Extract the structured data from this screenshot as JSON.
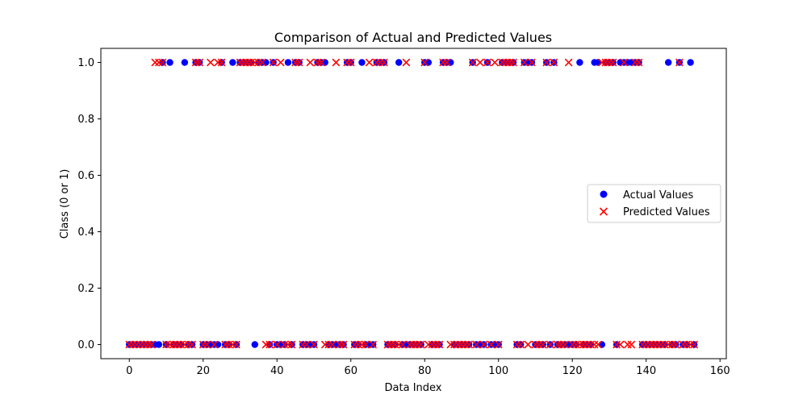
{
  "chart_data": {
    "type": "scatter",
    "title": "Comparison of Actual and Predicted Values",
    "xlabel": "Data Index",
    "ylabel": "Class (0 or 1)",
    "xlim": [
      -7.7,
      161.7
    ],
    "ylim": [
      -0.05,
      1.05
    ],
    "xticks": [
      0,
      20,
      40,
      60,
      80,
      100,
      120,
      140,
      160
    ],
    "yticks": [
      0.0,
      0.2,
      0.4,
      0.6,
      0.8,
      1.0
    ],
    "xtick_labels": [
      "0",
      "20",
      "40",
      "60",
      "80",
      "100",
      "120",
      "140",
      "160"
    ],
    "ytick_labels": [
      "0.0",
      "0.2",
      "0.4",
      "0.6",
      "0.8",
      "1.0"
    ],
    "grid": false,
    "legend_position": "center-right",
    "x": [
      0,
      1,
      2,
      3,
      4,
      5,
      6,
      7,
      8,
      9,
      10,
      11,
      12,
      13,
      14,
      15,
      16,
      17,
      18,
      19,
      20,
      21,
      22,
      23,
      24,
      25,
      26,
      27,
      28,
      29,
      30,
      31,
      32,
      33,
      34,
      35,
      36,
      37,
      38,
      39,
      40,
      41,
      42,
      43,
      44,
      45,
      46,
      47,
      48,
      49,
      50,
      51,
      52,
      53,
      54,
      55,
      56,
      57,
      58,
      59,
      60,
      61,
      62,
      63,
      64,
      65,
      66,
      67,
      68,
      69,
      70,
      71,
      72,
      73,
      74,
      75,
      76,
      77,
      78,
      79,
      80,
      81,
      82,
      83,
      84,
      85,
      86,
      87,
      88,
      89,
      90,
      91,
      92,
      93,
      94,
      95,
      96,
      97,
      98,
      99,
      100,
      101,
      102,
      103,
      104,
      105,
      106,
      107,
      108,
      109,
      110,
      111,
      112,
      113,
      114,
      115,
      116,
      117,
      118,
      119,
      120,
      121,
      122,
      123,
      124,
      125,
      126,
      127,
      128,
      129,
      130,
      131,
      132,
      133,
      134,
      135,
      136,
      137,
      138,
      139,
      140,
      141,
      142,
      143,
      144,
      145,
      146,
      147,
      148,
      149,
      150,
      151,
      152,
      153
    ],
    "series": [
      {
        "name": "Actual Values",
        "marker": "circle",
        "color": "#0000ff",
        "values": [
          0,
          0,
          0,
          0,
          0,
          0,
          0,
          0,
          0,
          1,
          0,
          1,
          0,
          0,
          0,
          1,
          0,
          0,
          1,
          1,
          0,
          0,
          0,
          0,
          0,
          1,
          0,
          0,
          1,
          0,
          1,
          1,
          1,
          1,
          0,
          1,
          1,
          1,
          0,
          1,
          0,
          0,
          0,
          1,
          0,
          1,
          1,
          0,
          0,
          0,
          0,
          1,
          1,
          1,
          0,
          0,
          0,
          0,
          0,
          1,
          1,
          0,
          0,
          1,
          0,
          0,
          0,
          1,
          1,
          1,
          0,
          0,
          0,
          1,
          0,
          0,
          0,
          0,
          0,
          0,
          1,
          1,
          0,
          0,
          0,
          1,
          1,
          1,
          0,
          0,
          0,
          0,
          0,
          1,
          0,
          0,
          0,
          1,
          0,
          0,
          0,
          1,
          1,
          1,
          1,
          0,
          0,
          1,
          1,
          1,
          0,
          0,
          0,
          1,
          0,
          1,
          0,
          0,
          0,
          0,
          0,
          0,
          1,
          0,
          0,
          0,
          1,
          1,
          0,
          1,
          1,
          1,
          0,
          1,
          1,
          1,
          1,
          1,
          1,
          0,
          0,
          0,
          0,
          0,
          0,
          0,
          1,
          0,
          0,
          1,
          0,
          0,
          1,
          0
        ]
      },
      {
        "name": "Predicted Values",
        "marker": "x",
        "color": "#ff0000",
        "values": [
          0,
          0,
          0,
          0,
          0,
          0,
          0,
          1,
          1,
          1,
          0,
          0,
          0,
          0,
          0,
          0,
          0,
          0,
          1,
          1,
          0,
          0,
          1,
          0,
          1,
          1,
          0,
          0,
          0,
          0,
          1,
          1,
          1,
          1,
          1,
          1,
          1,
          0,
          0,
          1,
          0,
          1,
          0,
          0,
          0,
          1,
          1,
          0,
          0,
          1,
          0,
          1,
          1,
          0,
          0,
          0,
          1,
          0,
          0,
          1,
          1,
          0,
          0,
          0,
          0,
          1,
          0,
          1,
          1,
          1,
          0,
          0,
          0,
          0,
          0,
          1,
          0,
          0,
          0,
          0,
          1,
          0,
          0,
          0,
          0,
          1,
          1,
          0,
          0,
          0,
          0,
          0,
          0,
          1,
          0,
          1,
          0,
          1,
          0,
          1,
          0,
          1,
          1,
          1,
          1,
          0,
          0,
          1,
          0,
          1,
          0,
          0,
          0,
          1,
          0,
          1,
          0,
          0,
          0,
          1,
          0,
          0,
          0,
          0,
          0,
          0,
          0,
          0,
          1,
          1,
          1,
          1,
          0,
          0,
          1,
          0,
          0,
          1,
          1,
          0,
          0,
          0,
          0,
          0,
          0,
          0,
          0,
          0,
          0,
          1,
          0,
          0,
          0,
          0
        ]
      }
    ]
  }
}
